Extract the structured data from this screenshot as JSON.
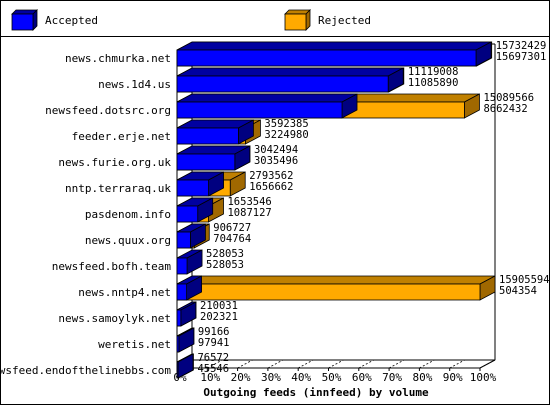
{
  "chart_data": {
    "type": "bar",
    "title": "Outgoing feeds (innfeed) by volume",
    "legend": {
      "placement": "top",
      "series": [
        {
          "name": "Accepted",
          "color": "#0000ff"
        },
        {
          "name": "Rejected",
          "color": "#ffaa00"
        }
      ]
    },
    "x_axis": {
      "ticks": [
        "0%",
        "10%",
        "20%",
        "30%",
        "40%",
        "50%",
        "60%",
        "70%",
        "80%",
        "90%",
        "100%"
      ],
      "range": [
        0,
        100
      ],
      "unit": "%"
    },
    "max_value": 15905594,
    "categories": [
      "news.chmurka.net",
      "news.1d4.us",
      "newsfeed.dotsrc.org",
      "feeder.erje.net",
      "news.furie.org.uk",
      "nntp.terraraq.uk",
      "pasdenom.info",
      "news.quux.org",
      "newsfeed.bofh.team",
      "news.nntp4.net",
      "news.samoylyk.net",
      "weretis.net",
      "newsfeed.endofthelinebbs.com"
    ],
    "offered": [
      15732429,
      11119008,
      15089566,
      3592385,
      3042494,
      2793562,
      1653546,
      906727,
      528053,
      15905594,
      210031,
      99166,
      76572
    ],
    "accepted_or_rejected": [
      15697301,
      11085890,
      8662432,
      3224980,
      3035496,
      1656662,
      1087127,
      704764,
      528053,
      504354,
      202321,
      97941,
      45546
    ],
    "series": [
      {
        "name": "Accepted",
        "values": [
          15697301,
          11085890,
          8662432,
          3224980,
          3035496,
          1656662,
          1087127,
          704764,
          528053,
          504354,
          202321,
          97941,
          45546
        ]
      },
      {
        "name": "Rejected",
        "values": [
          35128,
          33118,
          6427134,
          367405,
          6998,
          1136900,
          566419,
          201963,
          0,
          15401240,
          7710,
          1225,
          31026
        ]
      }
    ],
    "colors": {
      "accepted_front": "#0000ff",
      "accepted_top": "#0000a0",
      "accepted_side": "#000080",
      "rejected_front": "#ffaa00",
      "rejected_top": "#c08000",
      "rejected_side": "#a06800",
      "outline": "#000000"
    }
  }
}
